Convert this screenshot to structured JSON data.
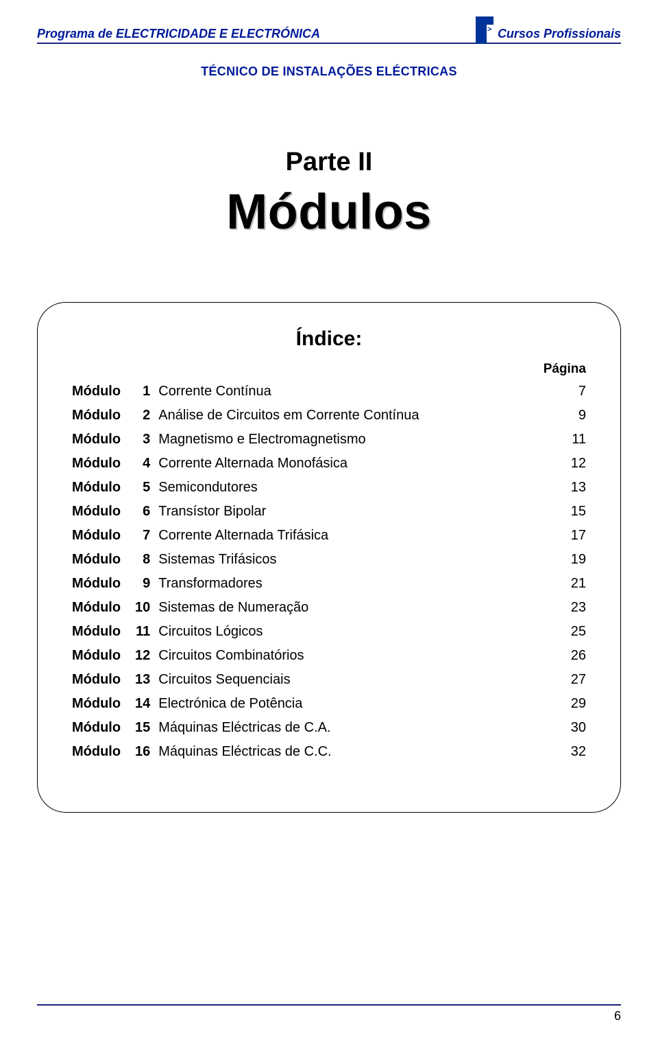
{
  "header": {
    "program_label": "Programa de ELECTRICIDADE E ELECTRÓNICA",
    "courses_label": "Cursos Profissionais",
    "subtitle": "TÉCNICO DE INSTALAÇÕES ELÉCTRICAS",
    "line_color": "#1a237e",
    "text_color": "#001a99"
  },
  "titles": {
    "part": "Parte II",
    "main": "Módulos",
    "shadow_color": "#bfbfbf"
  },
  "index": {
    "heading": "Índice:",
    "page_col_label": "Página",
    "module_word": "Módulo",
    "font_size": 20,
    "rows": [
      {
        "num": "1",
        "title": "Corrente Contínua",
        "page": "7"
      },
      {
        "num": "2",
        "title": "Análise de Circuitos em Corrente Contínua",
        "page": "9"
      },
      {
        "num": "3",
        "title": "Magnetismo e Electromagnetismo",
        "page": "11"
      },
      {
        "num": "4",
        "title": "Corrente Alternada Monofásica",
        "page": "12"
      },
      {
        "num": "5",
        "title": "Semicondutores",
        "page": "13"
      },
      {
        "num": "6",
        "title": "Transístor Bipolar",
        "page": "15"
      },
      {
        "num": "7",
        "title": "Corrente Alternada Trifásica",
        "page": "17"
      },
      {
        "num": "8",
        "title": "Sistemas Trifásicos",
        "page": "19"
      },
      {
        "num": "9",
        "title": "Transformadores",
        "page": "21"
      },
      {
        "num": "10",
        "title": "Sistemas de Numeração",
        "page": "23"
      },
      {
        "num": "11",
        "title": "Circuitos Lógicos",
        "page": "25"
      },
      {
        "num": "12",
        "title": "Circuitos Combinatórios",
        "page": "26"
      },
      {
        "num": "13",
        "title": "Circuitos Sequenciais",
        "page": "27"
      },
      {
        "num": "14",
        "title": "Electrónica de Potência",
        "page": "29"
      },
      {
        "num": "15",
        "title": "Máquinas Eléctricas de C.A.",
        "page": "30"
      },
      {
        "num": "16",
        "title": "Máquinas Eléctricas de C.C.",
        "page": "32"
      }
    ]
  },
  "footer": {
    "page_number": "6",
    "line_color": "#1a237e"
  },
  "colors": {
    "background": "#ffffff",
    "text": "#000000",
    "brand_blue": "#003399"
  }
}
